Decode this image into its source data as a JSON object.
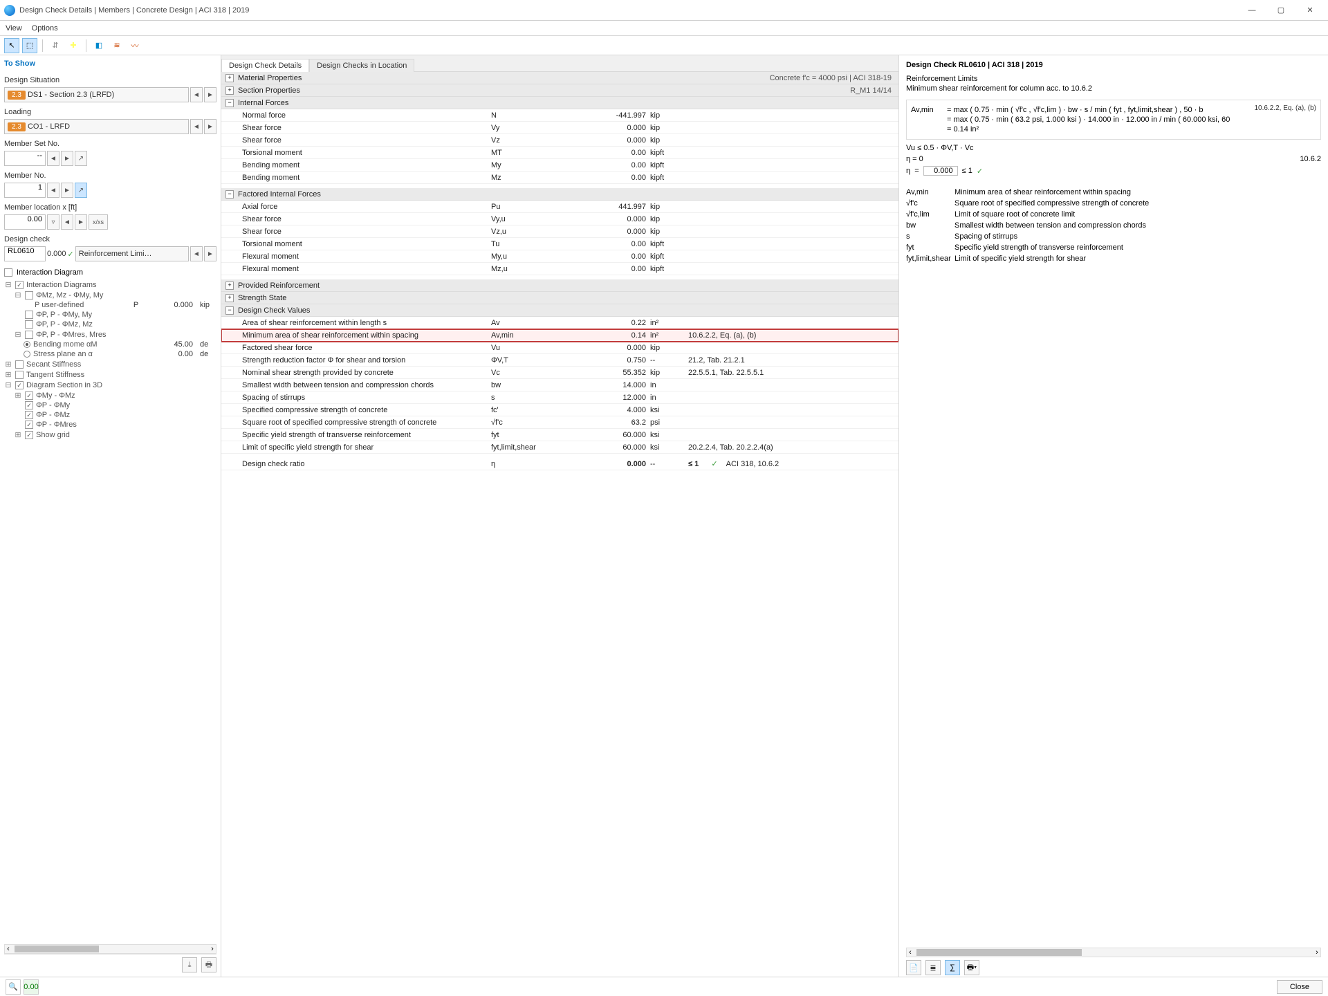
{
  "window": {
    "title": "Design Check Details | Members | Concrete Design | ACI 318 | 2019"
  },
  "menubar": {
    "items": [
      "View",
      "Options"
    ]
  },
  "left": {
    "toshow": "To Show",
    "design_situation_label": "Design Situation",
    "design_situation_chip": "2.3",
    "design_situation_value": "DS1 - Section 2.3 (LRFD)",
    "loading_label": "Loading",
    "loading_chip": "2.3",
    "loading_value": "CO1 - LRFD",
    "member_set_label": "Member Set No.",
    "member_set_value": "--",
    "member_no_label": "Member No.",
    "member_no_value": "1",
    "member_loc_label": "Member location x [ft]",
    "member_loc_value": "0.00",
    "design_check_label": "Design check",
    "design_check_code": "RL0610",
    "design_check_val": "0.000",
    "design_check_text": "Reinforcement Limi…",
    "interaction_diagram_label": "Interaction Diagram",
    "tree": {
      "root": "Interaction Diagrams",
      "n1": "ΦMz, Mz - ΦMy, My",
      "n1a": "P user-defined",
      "n1a_sym": "P",
      "n1a_val": "0.000",
      "n1a_unit": "kip",
      "n2": "ΦP, P - ΦMy, My",
      "n3": "ΦP, P - ΦMz, Mz",
      "n4": "ΦP, P - ΦMres, Mres",
      "n4a": "Bending mome αM",
      "n4a_val": "45.00",
      "n4a_unit": "de",
      "n4b": "Stress plane an α",
      "n4b_val": "0.00",
      "n4b_unit": "de",
      "secant": "Secant Stiffness",
      "tangent": "Tangent Stiffness",
      "d3d": "Diagram Section in 3D",
      "d3d_1": "ΦMy - ΦMz",
      "d3d_2": "ΦP - ΦMy",
      "d3d_3": "ΦP - ΦMz",
      "d3d_4": "ΦP - ΦMres",
      "d3d_5": "Show grid"
    }
  },
  "center": {
    "tab1": "Design Check Details",
    "tab2": "Design Checks in Location",
    "grp_material": "Material Properties",
    "grp_material_right": "Concrete f'c = 4000 psi | ACI 318-19",
    "grp_section": "Section Properties",
    "grp_section_right": "R_M1 14/14",
    "grp_internal": "Internal Forces",
    "internal_rows": [
      {
        "label": "Normal force",
        "sym": "N",
        "val": "-441.997",
        "unit": "kip"
      },
      {
        "label": "Shear force",
        "sym": "Vy",
        "val": "0.000",
        "unit": "kip"
      },
      {
        "label": "Shear force",
        "sym": "Vz",
        "val": "0.000",
        "unit": "kip"
      },
      {
        "label": "Torsional moment",
        "sym": "MT",
        "val": "0.00",
        "unit": "kipft"
      },
      {
        "label": "Bending moment",
        "sym": "My",
        "val": "0.00",
        "unit": "kipft"
      },
      {
        "label": "Bending moment",
        "sym": "Mz",
        "val": "0.00",
        "unit": "kipft"
      }
    ],
    "grp_factored": "Factored Internal Forces",
    "factored_rows": [
      {
        "label": "Axial force",
        "sym": "Pu",
        "val": "441.997",
        "unit": "kip"
      },
      {
        "label": "Shear force",
        "sym": "Vy,u",
        "val": "0.000",
        "unit": "kip"
      },
      {
        "label": "Shear force",
        "sym": "Vz,u",
        "val": "0.000",
        "unit": "kip"
      },
      {
        "label": "Torsional moment",
        "sym": "Tu",
        "val": "0.00",
        "unit": "kipft"
      },
      {
        "label": "Flexural moment",
        "sym": "My,u",
        "val": "0.00",
        "unit": "kipft"
      },
      {
        "label": "Flexural moment",
        "sym": "Mz,u",
        "val": "0.00",
        "unit": "kipft"
      }
    ],
    "grp_provided": "Provided Reinforcement",
    "grp_strength": "Strength State",
    "grp_values": "Design Check Values",
    "value_rows": [
      {
        "label": "Area of shear reinforcement within length s",
        "sym": "Av",
        "val": "0.22",
        "unit": "in²",
        "ref": ""
      },
      {
        "label": "Minimum area of shear reinforcement within spacing",
        "sym": "Av,min",
        "val": "0.14",
        "unit": "in²",
        "ref": "10.6.2.2, Eq. (a), (b)",
        "hl": true
      },
      {
        "label": "Factored shear force",
        "sym": "Vu",
        "val": "0.000",
        "unit": "kip",
        "ref": ""
      },
      {
        "label": "Strength reduction factor Φ for shear and torsion",
        "sym": "ΦV,T",
        "val": "0.750",
        "unit": "--",
        "ref": "21.2, Tab. 21.2.1"
      },
      {
        "label": "Nominal shear strength provided by concrete",
        "sym": "Vc",
        "val": "55.352",
        "unit": "kip",
        "ref": "22.5.5.1, Tab. 22.5.5.1"
      },
      {
        "label": "Smallest width between tension and compression chords",
        "sym": "bw",
        "val": "14.000",
        "unit": "in",
        "ref": ""
      },
      {
        "label": "Spacing of stirrups",
        "sym": "s",
        "val": "12.000",
        "unit": "in",
        "ref": ""
      },
      {
        "label": "Specified compressive strength of concrete",
        "sym": "fc'",
        "val": "4.000",
        "unit": "ksi",
        "ref": ""
      },
      {
        "label": "Square root of specified compressive strength of concrete",
        "sym": "√f'c",
        "val": "63.2",
        "unit": "psi",
        "ref": ""
      },
      {
        "label": "Specific yield strength of transverse reinforcement",
        "sym": "fyt",
        "val": "60.000",
        "unit": "ksi",
        "ref": ""
      },
      {
        "label": "Limit of specific yield strength for shear",
        "sym": "fyt,limit,shear",
        "val": "60.000",
        "unit": "ksi",
        "ref": "20.2.2.4, Tab. 20.2.2.4(a)"
      }
    ],
    "ratio_label": "Design check ratio",
    "ratio_sym": "η",
    "ratio_val": "0.000",
    "ratio_unit": "--",
    "ratio_cmp": "≤ 1",
    "ratio_ref": "ACI 318, 10.6.2"
  },
  "right": {
    "title": "Design Check RL0610 | ACI 318 | 2019",
    "sub1": "Reinforcement Limits",
    "sub2": "Minimum shear reinforcement for column acc. to 10.6.2",
    "formula_ref_top": "10.6.2.2, Eq. (a), (b)",
    "formula_l1_lhs": "Av,min",
    "formula_l1": "=   max ( 0.75 · min ( √f'c , √f'c,lim ) · bw · s / min ( fyt , fyt,limit,shear ) , 50 · b",
    "formula_l2": "=   max ( 0.75 · min ( 63.2 psi, 1.000 ksi ) · 14.000 in · 12.000 in / min ( 60.000 ksi, 60",
    "formula_l3": "=   0.14 in²",
    "cond1": "Vu ≤ 0.5 · ΦV,T · Vc",
    "eta_eq": "η   =   0",
    "eta_box": "0.000",
    "eta_cmp": "≤ 1",
    "ref2": "10.6.2",
    "legend": [
      {
        "sym": "Av,min",
        "txt": "Minimum area of shear reinforcement within spacing"
      },
      {
        "sym": "√f'c",
        "txt": "Square root of specified compressive strength of concrete"
      },
      {
        "sym": "√f'c,lim",
        "txt": "Limit of square root of concrete limit"
      },
      {
        "sym": "bw",
        "txt": "Smallest width between tension and compression chords"
      },
      {
        "sym": "s",
        "txt": "Spacing of stirrups"
      },
      {
        "sym": "fyt",
        "txt": "Specific yield strength of transverse reinforcement"
      },
      {
        "sym": "fyt,limit,shear",
        "txt": "Limit of specific yield strength for shear"
      }
    ]
  },
  "footer": {
    "close": "Close"
  }
}
